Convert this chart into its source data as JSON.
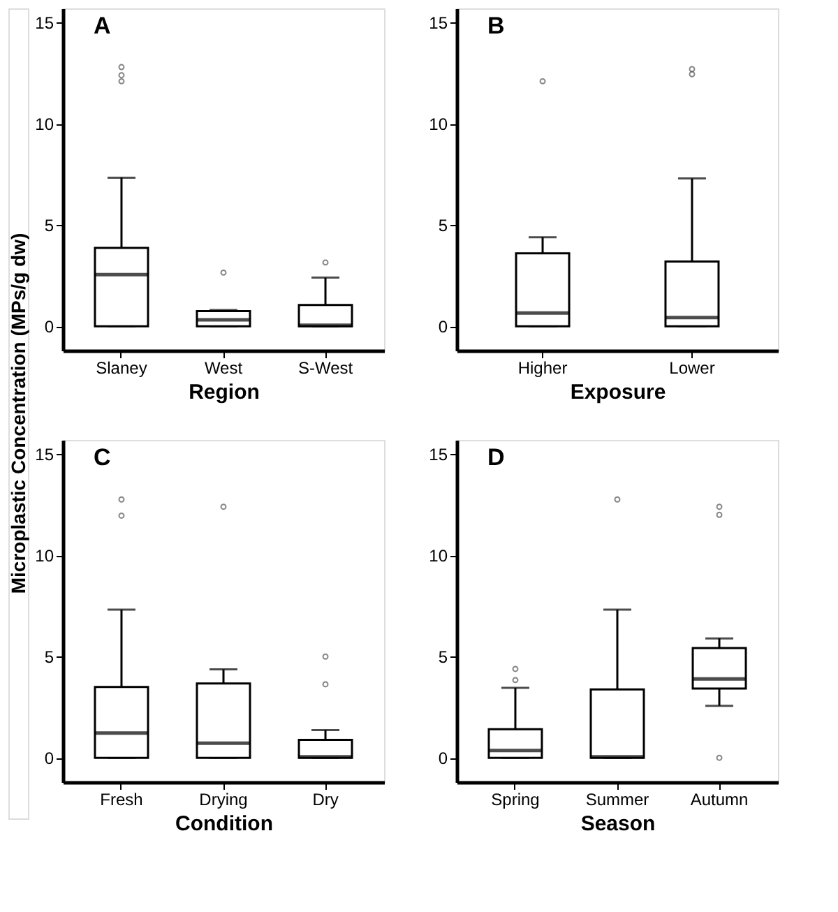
{
  "chart_data": [
    {
      "type": "box",
      "title": "A",
      "xlabel": "Region",
      "ylabel": "Microplastic Concentration (MPs/g dw)",
      "categories": [
        "Slaney",
        "West",
        "S-West"
      ],
      "ylim": [
        -1.2,
        15.7
      ],
      "yticks": [
        0,
        5,
        10,
        15
      ],
      "grid": false,
      "color": "#000000",
      "boxes": [
        {
          "low": 0,
          "q1": 0,
          "median": 2.55,
          "q3": 3.87,
          "high": 7.34,
          "outliers": [
            12.1,
            12.4,
            12.8
          ]
        },
        {
          "low": 0,
          "q1": 0,
          "median": 0.32,
          "q3": 0.75,
          "high": 0.8,
          "outliers": [
            2.65
          ]
        },
        {
          "low": 0,
          "q1": 0,
          "median": 0.05,
          "q3": 1.05,
          "high": 2.4,
          "outliers": [
            3.15
          ]
        }
      ]
    },
    {
      "type": "box",
      "title": "B",
      "xlabel": "Exposure",
      "categories": [
        "Higher",
        "Lower"
      ],
      "ylim": [
        -1.2,
        15.7
      ],
      "yticks": [
        0,
        5,
        10,
        15
      ],
      "grid": false,
      "color": "#000000",
      "boxes": [
        {
          "low": 0,
          "q1": 0,
          "median": 0.65,
          "q3": 3.6,
          "high": 4.4,
          "outliers": [
            12.1
          ]
        },
        {
          "low": 0,
          "q1": 0,
          "median": 0.43,
          "q3": 3.2,
          "high": 7.3,
          "outliers": [
            12.45,
            12.7
          ]
        }
      ]
    },
    {
      "type": "box",
      "title": "C",
      "xlabel": "Condition",
      "categories": [
        "Fresh",
        "Drying",
        "Dry"
      ],
      "ylim": [
        -1.2,
        15.7
      ],
      "yticks": [
        0,
        5,
        10,
        15
      ],
      "grid": false,
      "color": "#000000",
      "boxes": [
        {
          "low": 0,
          "q1": 0,
          "median": 1.22,
          "q3": 3.5,
          "high": 7.32,
          "outliers": [
            11.96,
            12.76
          ]
        },
        {
          "low": 0,
          "q1": 0,
          "median": 0.72,
          "q3": 3.67,
          "high": 4.37,
          "outliers": [
            12.4
          ]
        },
        {
          "low": 0,
          "q1": 0,
          "median": 0.05,
          "q3": 0.89,
          "high": 1.37,
          "outliers": [
            3.63,
            5.0
          ]
        }
      ]
    },
    {
      "type": "box",
      "title": "D",
      "xlabel": "Season",
      "categories": [
        "Spring",
        "Summer",
        "Autumn"
      ],
      "ylim": [
        -1.2,
        15.7
      ],
      "yticks": [
        0,
        5,
        10,
        15
      ],
      "grid": false,
      "color": "#000000",
      "boxes": [
        {
          "low": 0,
          "q1": 0,
          "median": 0.36,
          "q3": 1.41,
          "high": 3.46,
          "outliers": [
            3.84,
            4.39
          ]
        },
        {
          "low": 0,
          "q1": 0,
          "median": 0.05,
          "q3": 3.38,
          "high": 7.32,
          "outliers": [
            12.76
          ]
        },
        {
          "low": 2.57,
          "q1": 3.42,
          "median": 3.9,
          "q3": 5.42,
          "high": 5.9,
          "outliers": [
            0,
            12.0,
            12.4
          ]
        }
      ]
    }
  ]
}
